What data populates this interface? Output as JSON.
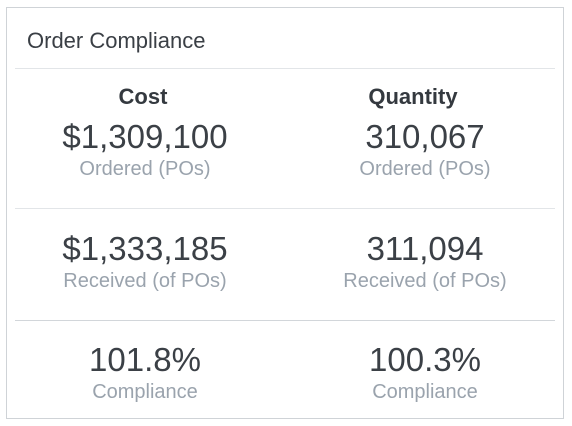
{
  "widget": {
    "title": "Order Compliance"
  },
  "columns": {
    "cost_label": "Cost",
    "quantity_label": "Quantity"
  },
  "ordered": {
    "cost_value": "$1,309,100",
    "quantity_value": "310,067",
    "caption": "Ordered (POs)"
  },
  "received": {
    "cost_value": "$1,333,185",
    "quantity_value": "311,094",
    "caption": "Received (of POs)"
  },
  "compliance": {
    "cost_value": "101.8%",
    "quantity_value": "100.3%",
    "caption": "Compliance"
  },
  "colors": {
    "title_text": "#3a3f45",
    "value_text": "#3b4046",
    "caption_text": "#9aa3ad",
    "border": "#cfd3d7"
  }
}
